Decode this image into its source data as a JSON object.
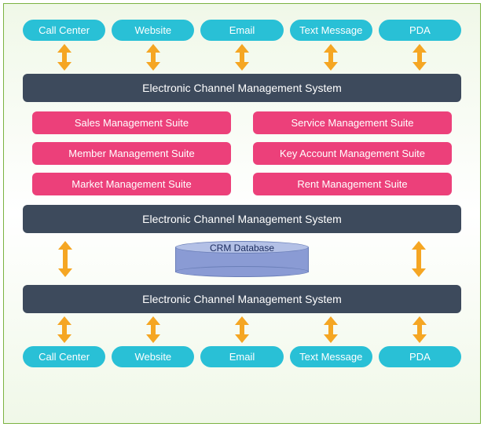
{
  "diagram": {
    "type": "flowchart",
    "background_gradient": [
      "#f0f8e8",
      "#ffffff",
      "#f0f8e8"
    ],
    "border_color": "#7cb342",
    "channel_color": "#29c0d6",
    "channel_text_color": "#ffffff",
    "bar_color": "#3d4a5c",
    "bar_text_color": "#ffffff",
    "suite_color": "#ec407a",
    "suite_text_color": "#ffffff",
    "arrow_color": "#f5a623",
    "db_top_color": "#b3c0e6",
    "db_body_color": "#8a9bd4",
    "db_border_color": "#6b7fb8",
    "db_text_color": "#1a2a5c",
    "channels_top": [
      "Call Center",
      "Website",
      "Email",
      "Text Message",
      "PDA"
    ],
    "bar1": "Electronic Channel Management System",
    "suites_left": [
      "Sales Management Suite",
      "Member Management Suite",
      "Market Management Suite"
    ],
    "suites_right": [
      "Service Management Suite",
      "Key Account Management Suite",
      "Rent Management Suite"
    ],
    "bar2": "Electronic Channel Management System",
    "db_label": "CRM Database",
    "bar3": "Electronic Channel Management System",
    "channels_bottom": [
      "Call Center",
      "Website",
      "Email",
      "Text Message",
      "PDA"
    ]
  }
}
